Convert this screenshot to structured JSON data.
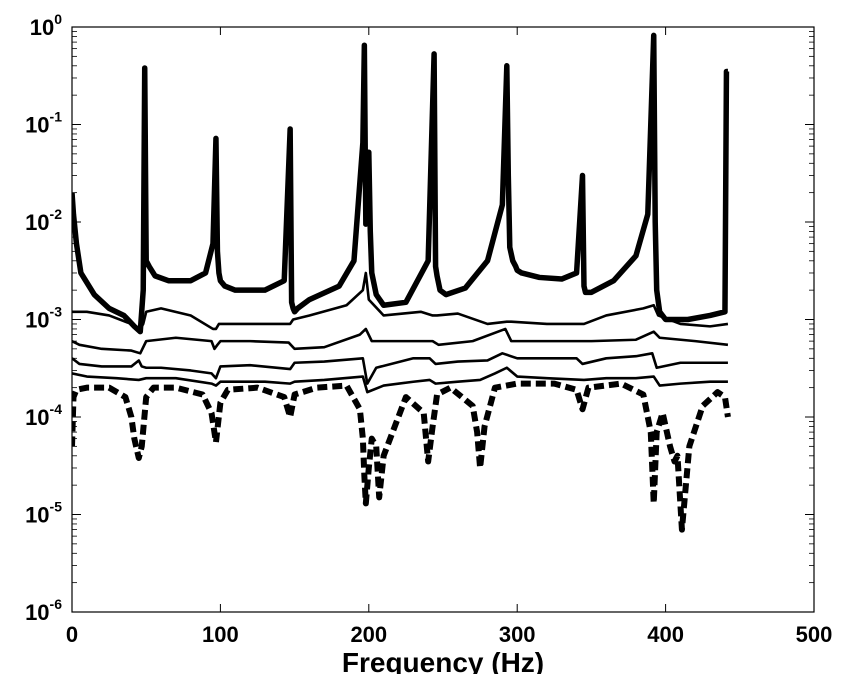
{
  "chart_data": {
    "type": "line",
    "title": "",
    "xlabel": "Frequency (Hz)",
    "ylabel": "",
    "xlim": [
      0,
      500
    ],
    "ylim": [
      1e-06,
      1
    ],
    "yscale": "log",
    "grid": false,
    "legend": "none",
    "x_ticks": [
      {
        "value": 0,
        "label": "0"
      },
      {
        "value": 100,
        "label": "100"
      },
      {
        "value": 200,
        "label": "200"
      },
      {
        "value": 300,
        "label": "300"
      },
      {
        "value": 400,
        "label": "400"
      },
      {
        "value": 500,
        "label": "500"
      }
    ],
    "y_ticks": [
      {
        "value": 1e-06,
        "base": "10",
        "exp": "-6"
      },
      {
        "value": 1e-05,
        "base": "10",
        "exp": "-5"
      },
      {
        "value": 0.0001,
        "base": "10",
        "exp": "-4"
      },
      {
        "value": 0.001,
        "base": "10",
        "exp": "-3"
      },
      {
        "value": 0.01,
        "base": "10",
        "exp": "-2"
      },
      {
        "value": 0.1,
        "base": "10",
        "exp": "-1"
      },
      {
        "value": 1,
        "base": "10",
        "exp": "0"
      }
    ],
    "series": [
      {
        "style": "thick-solid",
        "x": [
          0,
          1,
          3,
          6,
          15,
          25,
          35,
          42,
          46,
          48,
          49,
          50,
          52,
          56,
          65,
          80,
          90,
          95,
          97,
          98,
          99,
          100,
          103,
          110,
          130,
          143,
          147,
          148,
          149,
          150,
          152,
          160,
          180,
          190,
          196,
          197,
          198,
          200,
          201,
          202,
          205,
          210,
          225,
          240,
          244,
          245,
          246,
          248,
          252,
          265,
          280,
          290,
          293,
          294,
          295,
          297,
          299,
          300,
          303,
          315,
          330,
          340,
          344,
          345,
          346,
          350,
          365,
          380,
          388,
          392,
          393,
          394,
          396,
          400,
          415,
          430,
          440,
          441,
          442
        ],
        "y": [
          0.02,
          0.012,
          0.006,
          0.003,
          0.0018,
          0.0013,
          0.0011,
          0.00085,
          0.00075,
          0.002,
          0.38,
          0.004,
          0.0035,
          0.0028,
          0.0025,
          0.0025,
          0.003,
          0.006,
          0.072,
          0.005,
          0.003,
          0.0025,
          0.0022,
          0.002,
          0.002,
          0.0025,
          0.09,
          0.0015,
          0.0013,
          0.0012,
          0.0013,
          0.0016,
          0.0022,
          0.004,
          0.065,
          0.65,
          0.0095,
          0.052,
          0.008,
          0.003,
          0.0018,
          0.0014,
          0.0015,
          0.004,
          0.53,
          0.0035,
          0.0028,
          0.002,
          0.0018,
          0.0021,
          0.004,
          0.015,
          0.4,
          0.03,
          0.0055,
          0.004,
          0.0035,
          0.0032,
          0.003,
          0.0027,
          0.0026,
          0.003,
          0.03,
          0.0022,
          0.0019,
          0.0019,
          0.0025,
          0.0045,
          0.012,
          0.82,
          0.01,
          0.002,
          0.0012,
          0.001,
          0.001,
          0.0011,
          0.0012,
          0.35,
          0.35
        ]
      },
      {
        "style": "solid",
        "x": [
          0,
          3,
          10,
          25,
          40,
          46,
          48,
          50,
          60,
          80,
          95,
          97,
          99,
          110,
          140,
          147,
          149,
          160,
          185,
          196,
          198,
          200,
          210,
          235,
          243,
          246,
          260,
          280,
          293,
          296,
          320,
          340,
          345,
          360,
          385,
          392,
          395,
          410,
          430,
          442
        ],
        "y": [
          0.0012,
          0.0012,
          0.0012,
          0.0011,
          0.0009,
          0.0008,
          0.0009,
          0.0012,
          0.0013,
          0.0011,
          0.0008,
          0.0008,
          0.0009,
          0.0009,
          0.0009,
          0.0009,
          0.001,
          0.0011,
          0.0014,
          0.002,
          0.003,
          0.0016,
          0.0011,
          0.0012,
          0.0011,
          0.0011,
          0.00115,
          0.0009,
          0.00095,
          0.00095,
          0.0009,
          0.0009,
          0.0009,
          0.0011,
          0.0013,
          0.0014,
          0.0011,
          0.0009,
          0.00085,
          0.0009
        ]
      },
      {
        "style": "solid",
        "x": [
          0,
          5,
          20,
          40,
          46,
          50,
          70,
          94,
          96,
          98,
          100,
          120,
          146,
          150,
          170,
          194,
          198,
          202,
          230,
          243,
          247,
          270,
          292,
          296,
          320,
          344,
          350,
          380,
          392,
          396,
          420,
          442
        ],
        "y": [
          0.0006,
          0.00055,
          0.0005,
          0.00048,
          0.00045,
          0.0006,
          0.00065,
          0.0006,
          0.0005,
          0.00055,
          0.0006,
          0.0006,
          0.00058,
          0.0005,
          0.00052,
          0.0007,
          0.0008,
          0.0006,
          0.0006,
          0.0006,
          0.00055,
          0.0006,
          0.0008,
          0.0006,
          0.0006,
          0.0006,
          0.0006,
          0.00062,
          0.00075,
          0.00065,
          0.0006,
          0.00055
        ]
      },
      {
        "style": "solid",
        "x": [
          0,
          5,
          20,
          40,
          45,
          47,
          50,
          60,
          80,
          94,
          97,
          100,
          120,
          147,
          150,
          170,
          196,
          199,
          205,
          230,
          241,
          245,
          260,
          280,
          290,
          300,
          320,
          340,
          344,
          360,
          380,
          391,
          394,
          410,
          430,
          442
        ],
        "y": [
          0.0004,
          0.00035,
          0.00033,
          0.00033,
          0.00038,
          0.00033,
          0.00032,
          0.00032,
          0.0003,
          0.00028,
          0.00025,
          0.00033,
          0.00034,
          0.00031,
          0.00036,
          0.00037,
          0.0004,
          0.00022,
          0.00032,
          0.0004,
          0.0004,
          0.00035,
          0.00037,
          0.00038,
          0.00045,
          0.0004,
          0.0004,
          0.0004,
          0.00035,
          0.0004,
          0.00042,
          0.00045,
          0.00032,
          0.00036,
          0.00036,
          0.00036
        ]
      },
      {
        "style": "solid",
        "x": [
          0,
          10,
          30,
          45,
          50,
          70,
          94,
          97,
          100,
          130,
          147,
          150,
          170,
          196,
          199,
          210,
          230,
          241,
          245,
          260,
          275,
          285,
          293,
          300,
          320,
          345,
          360,
          380,
          392,
          396,
          410,
          430,
          442
        ],
        "y": [
          0.00028,
          0.00026,
          0.00025,
          0.00024,
          0.00025,
          0.00025,
          0.00022,
          0.00021,
          0.00023,
          0.00023,
          0.00022,
          0.00023,
          0.00024,
          0.00026,
          0.00018,
          0.00021,
          0.00023,
          0.00024,
          0.00022,
          0.00023,
          0.00024,
          0.00028,
          0.00032,
          0.00026,
          0.00025,
          0.00024,
          0.00025,
          0.00025,
          0.00026,
          0.00021,
          0.00022,
          0.00023,
          0.00023
        ]
      },
      {
        "style": "thick-dashed",
        "x": [
          0,
          1,
          3,
          10,
          25,
          36,
          40,
          42,
          45,
          47,
          50,
          55,
          70,
          88,
          94,
          97,
          100,
          105,
          125,
          143,
          147,
          150,
          165,
          185,
          194,
          196,
          197,
          198,
          200,
          202,
          205,
          207,
          210,
          225,
          237,
          240,
          243,
          246,
          255,
          270,
          273,
          275,
          278,
          285,
          300,
          325,
          340,
          344,
          348,
          370,
          385,
          390,
          392,
          394,
          398,
          403,
          406,
          408,
          411,
          416,
          425,
          435,
          440,
          442
        ],
        "y": [
          5e-05,
          0.00016,
          0.00019,
          0.0002,
          0.0002,
          0.00016,
          0.0001,
          6e-05,
          3.8e-05,
          5e-05,
          0.00016,
          0.0002,
          0.0002,
          0.00017,
          0.00011,
          5.5e-05,
          0.00014,
          0.00019,
          0.0002,
          0.00016,
          0.0001,
          0.00017,
          0.0002,
          0.00021,
          0.00012,
          6e-05,
          2.5e-05,
          1.3e-05,
          3e-05,
          6e-05,
          5e-05,
          1.5e-05,
          4e-05,
          0.00016,
          0.00011,
          3.5e-05,
          8e-05,
          0.00017,
          0.0002,
          0.00013,
          7e-05,
          3e-05,
          8e-05,
          0.0002,
          0.00022,
          0.00022,
          0.00019,
          0.00012,
          0.0002,
          0.00022,
          0.00017,
          7e-05,
          1.3e-05,
          7e-05,
          0.00011,
          5e-05,
          3.5e-05,
          4e-05,
          7e-06,
          5e-05,
          0.00013,
          0.00018,
          0.00016,
          0.0001
        ]
      }
    ]
  }
}
